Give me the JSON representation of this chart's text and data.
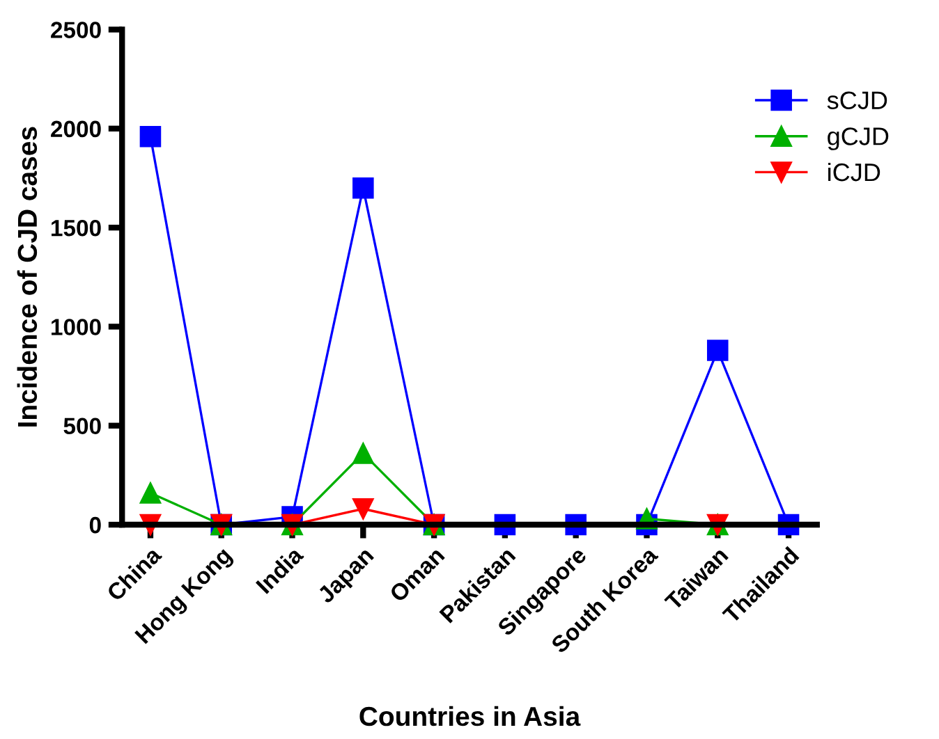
{
  "chart_data": {
    "type": "line",
    "xlabel": "Countries in Asia",
    "ylabel": "Incidence of CJD cases",
    "categories": [
      "China",
      "Hong Kong",
      "India",
      "Japan",
      "Oman",
      "Pakistan",
      "Singapore",
      "South Korea",
      "Taiwan",
      "Thailand"
    ],
    "series": [
      {
        "name": "sCJD",
        "color": "#0000ff",
        "marker": "square",
        "values": [
          1960,
          0,
          40,
          1700,
          0,
          0,
          0,
          0,
          880,
          0
        ]
      },
      {
        "name": "gCJD",
        "color": "#00b000",
        "marker": "triangle",
        "values": [
          160,
          0,
          0,
          360,
          0,
          null,
          null,
          30,
          0,
          null
        ]
      },
      {
        "name": "iCJD",
        "color": "#ff0000",
        "marker": "triangle_down",
        "values": [
          0,
          0,
          0,
          80,
          0,
          null,
          null,
          null,
          0,
          null
        ]
      }
    ],
    "ylim": [
      0,
      2500
    ],
    "yticks": [
      0,
      500,
      1000,
      1500,
      2000,
      2500
    ],
    "grid": false,
    "legend": "right",
    "line_style": "solid"
  }
}
